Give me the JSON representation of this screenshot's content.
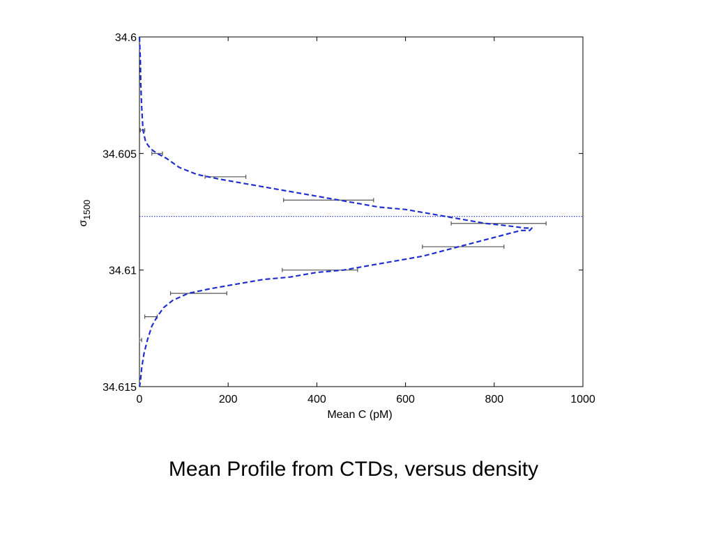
{
  "caption": "Mean Profile from CTDs, versus density",
  "chart_data": {
    "type": "line",
    "xlabel": "Mean C  (pM)",
    "ylabel": {
      "base": "σ",
      "sub": "1500"
    },
    "xlim": [
      0,
      1000
    ],
    "ylim": [
      34.6,
      34.615
    ],
    "y_reversed": true,
    "xticks": [
      0,
      200,
      400,
      600,
      800,
      1000
    ],
    "yticks": [
      34.6,
      34.605,
      34.61,
      34.615
    ],
    "xtick_labels": [
      "0",
      "200",
      "400",
      "600",
      "800",
      "1000"
    ],
    "ytick_labels": [
      "34.6",
      "34.605",
      "34.61",
      "34.615"
    ],
    "grid": false,
    "series_color": "#1f2ecc",
    "errorbar_color": "#555555",
    "reference_line": {
      "y": 34.6077,
      "color": "#1f2ecc",
      "style": "dotted"
    },
    "curve": {
      "x": [
        0,
        2,
        3,
        5,
        8,
        14,
        25,
        40,
        60,
        90,
        130,
        180,
        240,
        300,
        360,
        420,
        480,
        540,
        600,
        660,
        720,
        780,
        830,
        870,
        885,
        880,
        860,
        820,
        760,
        700,
        640,
        580,
        520,
        460,
        400,
        340,
        280,
        220,
        160,
        110,
        75,
        55,
        40,
        28,
        18,
        10,
        5,
        2,
        0
      ],
      "y": [
        34.6,
        34.601,
        34.602,
        34.603,
        34.604,
        34.6045,
        34.6048,
        34.605,
        34.6052,
        34.6056,
        34.6059,
        34.6061,
        34.6063,
        34.6065,
        34.6067,
        34.6069,
        34.6071,
        34.6073,
        34.6074,
        34.6076,
        34.6078,
        34.608,
        34.6081,
        34.6082,
        34.6082,
        34.6083,
        34.6083,
        34.6085,
        34.6088,
        34.6091,
        34.6094,
        34.6096,
        34.6098,
        34.61,
        34.6101,
        34.6103,
        34.6104,
        34.6106,
        34.6108,
        34.611,
        34.6113,
        34.6116,
        34.612,
        34.6124,
        34.613,
        34.6136,
        34.6142,
        34.6148,
        34.615
      ]
    },
    "errorbars": [
      {
        "y": 34.604,
        "xmin": 2,
        "xmax": 12
      },
      {
        "y": 34.605,
        "xmin": 28,
        "xmax": 52
      },
      {
        "y": 34.606,
        "xmin": 148,
        "xmax": 240
      },
      {
        "y": 34.607,
        "xmin": 325,
        "xmax": 528
      },
      {
        "y": 34.608,
        "xmin": 703,
        "xmax": 917
      },
      {
        "y": 34.609,
        "xmin": 638,
        "xmax": 822
      },
      {
        "y": 34.61,
        "xmin": 322,
        "xmax": 492
      },
      {
        "y": 34.611,
        "xmin": 70,
        "xmax": 197
      },
      {
        "y": 34.612,
        "xmin": 12,
        "xmax": 40
      },
      {
        "y": 34.613,
        "xmin": 0,
        "xmax": 5
      }
    ]
  }
}
